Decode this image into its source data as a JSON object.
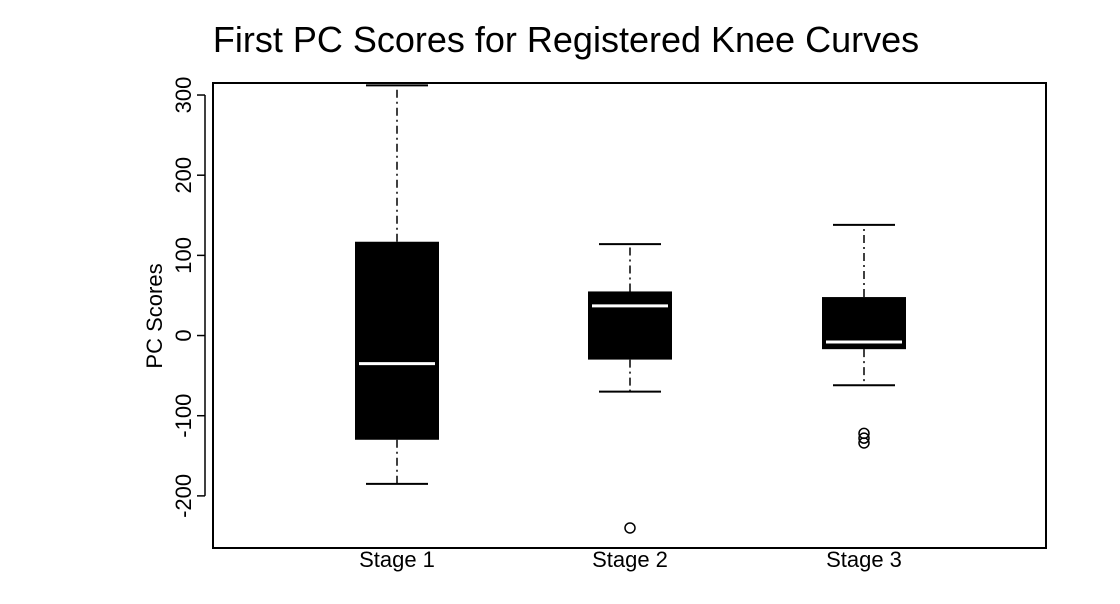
{
  "chart_data": {
    "type": "box",
    "title": "First PC Scores for Registered Knee Curves",
    "xlabel": "",
    "ylabel": "PC Scores",
    "ylim": [
      -265,
      315
    ],
    "y_ticks": [
      -200,
      -100,
      0,
      100,
      200,
      300
    ],
    "grid": false,
    "legend": null,
    "colors": {
      "box_fill": "#000000",
      "median": "#ffffff",
      "whisker": "#000000",
      "frame": "#000000"
    },
    "categories": [
      "Stage 1",
      "Stage 2",
      "Stage 3"
    ],
    "boxes": [
      {
        "category": "Stage 1",
        "whisker_low": -185,
        "q1": -130,
        "median": -35,
        "q3": 117,
        "whisker_high": 312,
        "outliers": []
      },
      {
        "category": "Stage 2",
        "whisker_low": -70,
        "q1": -30,
        "median": 37,
        "q3": 55,
        "whisker_high": 114,
        "outliers": [
          -240
        ]
      },
      {
        "category": "Stage 3",
        "whisker_low": -62,
        "q1": -17,
        "median": -8,
        "q3": 48,
        "whisker_high": 138,
        "outliers": [
          -122,
          -128,
          -134
        ]
      }
    ]
  }
}
